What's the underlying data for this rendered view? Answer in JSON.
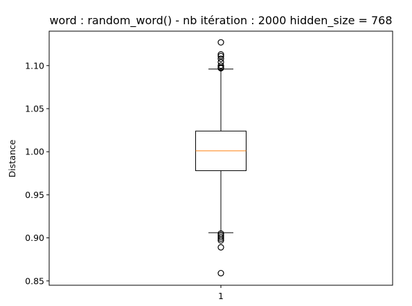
{
  "chart_data": {
    "type": "box",
    "title": "word : random_word() - nb itération : 2000 hidden_size = 768",
    "xlabel": "",
    "ylabel": "Distance",
    "categories": [
      "1"
    ],
    "ylim": [
      0.845,
      1.14
    ],
    "yticks": [
      0.85,
      0.9,
      0.95,
      1.0,
      1.05,
      1.1
    ],
    "ytick_labels": [
      "0.85",
      "0.90",
      "0.95",
      "1.00",
      "1.05",
      "1.10"
    ],
    "grid": false,
    "boxes": [
      {
        "category": "1",
        "q1": 0.978,
        "median": 1.001,
        "q3": 1.024,
        "whisker_low": 0.906,
        "whisker_high": 1.096,
        "fliers": [
          1.127,
          1.113,
          1.111,
          1.108,
          1.104,
          1.1,
          1.098,
          1.097,
          0.905,
          0.903,
          0.901,
          0.899,
          0.897,
          0.889,
          0.859
        ]
      }
    ],
    "colors": {
      "box": "#000000",
      "median": "#ff7f0e",
      "flier": "#000000"
    }
  }
}
